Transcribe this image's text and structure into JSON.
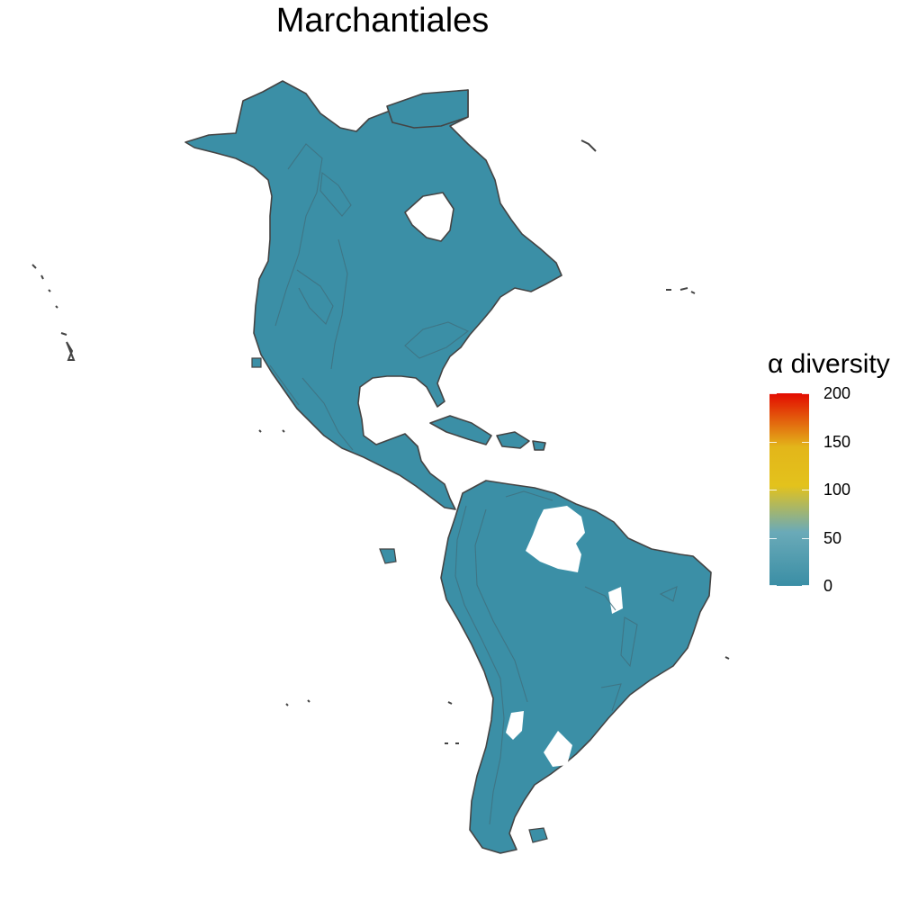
{
  "map": {
    "title": "Marchantiales",
    "fill_color": "#3b8fa6",
    "outline_color": "#444444",
    "legend": {
      "title": "α diversity",
      "min": 0,
      "max": 200,
      "ticks": [
        "200",
        "150",
        "100",
        "50",
        "0"
      ],
      "colors": [
        "#e30b00",
        "#e3b61a",
        "#6aaab8",
        "#3a8ea5"
      ]
    }
  }
}
